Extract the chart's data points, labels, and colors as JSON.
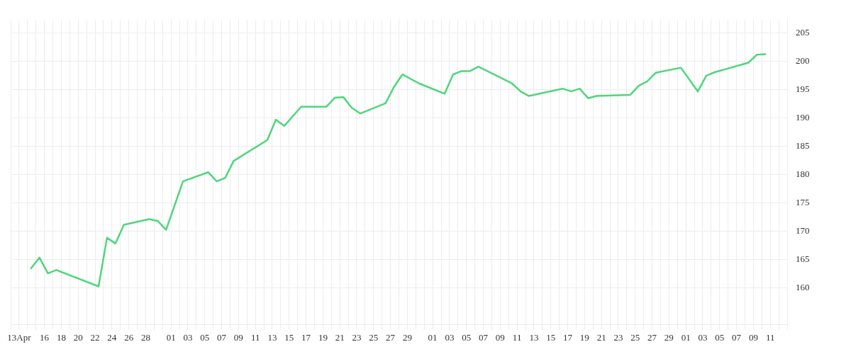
{
  "chart_data": {
    "type": "line",
    "color": "#4fd67c",
    "marker": "none",
    "line_style": "solid",
    "grid": true,
    "legend": false,
    "x": [
      "--04-14T10:00",
      "--04-15T10:00",
      "--04-16T10:00",
      "--04-17T10:00",
      "--04-22T10:00",
      "--04-23T10:00",
      "--04-24T10:00",
      "--04-25T10:00",
      "--04-28T10:00",
      "--04-29T10:00",
      "--04-30T10:00",
      "--05-02T10:00",
      "--05-05T10:00",
      "--05-06T10:00",
      "--05-07T10:00",
      "--05-08T10:00",
      "--05-12T10:00",
      "--05-13T10:00",
      "--05-14T10:00",
      "--05-16T10:00",
      "--05-19T10:00",
      "--05-20T10:00",
      "--05-21T10:00",
      "--05-22T10:00",
      "--05-23T10:00",
      "--05-26T10:00",
      "--05-27T10:00",
      "--05-28T10:00",
      "--05-30T10:00",
      "--06-02T10:00",
      "--06-03T10:00",
      "--06-04T10:00",
      "--06-05T10:00",
      "--06-06T10:00",
      "--06-10T10:00",
      "--06-11T10:00",
      "--06-12T10:00",
      "--06-16T10:00",
      "--06-17T10:00",
      "--06-18T10:00",
      "--06-19T10:00",
      "--06-20T10:00",
      "--06-24T10:00",
      "--06-25T10:00",
      "--06-26T10:00",
      "--06-27T10:00",
      "--06-30T10:00",
      "--07-02T10:00",
      "--07-03T10:00",
      "--07-04T10:00",
      "--07-08T10:00",
      "--07-09T10:00",
      "--07-10T10:00"
    ],
    "values": [
      163.4,
      165.3,
      162.5,
      163.1,
      160.2,
      168.8,
      167.8,
      171.1,
      172.1,
      171.8,
      170.2,
      178.8,
      180.4,
      178.8,
      179.4,
      182.4,
      186.1,
      189.7,
      188.6,
      192.0,
      192.0,
      193.6,
      193.7,
      191.8,
      190.8,
      192.6,
      195.5,
      197.7,
      196.1,
      194.3,
      197.7,
      198.3,
      198.3,
      199.1,
      196.1,
      194.7,
      193.9,
      195.2,
      194.7,
      195.2,
      193.5,
      193.9,
      194.1,
      195.7,
      196.5,
      198.0,
      198.9,
      194.7,
      197.5,
      198.1,
      199.8,
      201.2,
      201.3
    ],
    "ylim": [
      153.5,
      207.4
    ],
    "yticks": [
      160,
      165,
      170,
      175,
      180,
      185,
      190,
      195,
      200,
      205
    ],
    "xlim": [
      "--04-12",
      "--07-13"
    ],
    "xticks": [
      {
        "value": "--04-12",
        "label": null
      },
      {
        "value": "--04-13",
        "label": "13Apr"
      },
      {
        "value": "--04-14",
        "label": null
      },
      {
        "value": "--04-15",
        "label": null
      },
      {
        "value": "--04-16",
        "label": "16"
      },
      {
        "value": "--04-17",
        "label": null
      },
      {
        "value": "--04-18",
        "label": "18"
      },
      {
        "value": "--04-19",
        "label": null
      },
      {
        "value": "--04-20",
        "label": "20"
      },
      {
        "value": "--04-21",
        "label": null
      },
      {
        "value": "--04-22",
        "label": "22"
      },
      {
        "value": "--04-23",
        "label": null
      },
      {
        "value": "--04-24",
        "label": "24"
      },
      {
        "value": "--04-25",
        "label": null
      },
      {
        "value": "--04-26",
        "label": "26"
      },
      {
        "value": "--04-27",
        "label": null
      },
      {
        "value": "--04-28",
        "label": "28"
      },
      {
        "value": "--04-29",
        "label": null
      },
      {
        "value": "--04-30",
        "label": null
      },
      {
        "value": "--05-01",
        "label": "01"
      },
      {
        "value": "--05-02",
        "label": null
      },
      {
        "value": "--05-03",
        "label": "03"
      },
      {
        "value": "--05-04",
        "label": null
      },
      {
        "value": "--05-05",
        "label": "05"
      },
      {
        "value": "--05-06",
        "label": null
      },
      {
        "value": "--05-07",
        "label": "07"
      },
      {
        "value": "--05-08",
        "label": null
      },
      {
        "value": "--05-09",
        "label": "09"
      },
      {
        "value": "--05-10",
        "label": null
      },
      {
        "value": "--05-11",
        "label": "11"
      },
      {
        "value": "--05-12",
        "label": null
      },
      {
        "value": "--05-13",
        "label": "13"
      },
      {
        "value": "--05-14",
        "label": null
      },
      {
        "value": "--05-15",
        "label": "15"
      },
      {
        "value": "--05-16",
        "label": null
      },
      {
        "value": "--05-17",
        "label": "17"
      },
      {
        "value": "--05-18",
        "label": null
      },
      {
        "value": "--05-19",
        "label": "19"
      },
      {
        "value": "--05-20",
        "label": null
      },
      {
        "value": "--05-21",
        "label": "21"
      },
      {
        "value": "--05-22",
        "label": null
      },
      {
        "value": "--05-23",
        "label": "23"
      },
      {
        "value": "--05-24",
        "label": null
      },
      {
        "value": "--05-25",
        "label": "25"
      },
      {
        "value": "--05-26",
        "label": null
      },
      {
        "value": "--05-27",
        "label": "27"
      },
      {
        "value": "--05-28",
        "label": null
      },
      {
        "value": "--05-29",
        "label": "29"
      },
      {
        "value": "--05-30",
        "label": null
      },
      {
        "value": "--05-31",
        "label": null
      },
      {
        "value": "--06-01",
        "label": "01"
      },
      {
        "value": "--06-02",
        "label": null
      },
      {
        "value": "--06-03",
        "label": "03"
      },
      {
        "value": "--06-04",
        "label": null
      },
      {
        "value": "--06-05",
        "label": "05"
      },
      {
        "value": "--06-06",
        "label": null
      },
      {
        "value": "--06-07",
        "label": "07"
      },
      {
        "value": "--06-08",
        "label": null
      },
      {
        "value": "--06-09",
        "label": "09"
      },
      {
        "value": "--06-10",
        "label": null
      },
      {
        "value": "--06-11",
        "label": "11"
      },
      {
        "value": "--06-12",
        "label": null
      },
      {
        "value": "--06-13",
        "label": "13"
      },
      {
        "value": "--06-14",
        "label": null
      },
      {
        "value": "--06-15",
        "label": "15"
      },
      {
        "value": "--06-16",
        "label": null
      },
      {
        "value": "--06-17",
        "label": "17"
      },
      {
        "value": "--06-18",
        "label": null
      },
      {
        "value": "--06-19",
        "label": "19"
      },
      {
        "value": "--06-20",
        "label": null
      },
      {
        "value": "--06-21",
        "label": "21"
      },
      {
        "value": "--06-22",
        "label": null
      },
      {
        "value": "--06-23",
        "label": "23"
      },
      {
        "value": "--06-24",
        "label": null
      },
      {
        "value": "--06-25",
        "label": "25"
      },
      {
        "value": "--06-26",
        "label": null
      },
      {
        "value": "--06-27",
        "label": "27"
      },
      {
        "value": "--06-28",
        "label": null
      },
      {
        "value": "--06-29",
        "label": "29"
      },
      {
        "value": "--06-30",
        "label": null
      },
      {
        "value": "--07-01",
        "label": "01"
      },
      {
        "value": "--07-02",
        "label": null
      },
      {
        "value": "--07-03",
        "label": "03"
      },
      {
        "value": "--07-04",
        "label": null
      },
      {
        "value": "--07-05",
        "label": "05"
      },
      {
        "value": "--07-06",
        "label": null
      },
      {
        "value": "--07-07",
        "label": "07"
      },
      {
        "value": "--07-08",
        "label": null
      },
      {
        "value": "--07-09",
        "label": "09"
      },
      {
        "value": "--07-10",
        "label": null
      },
      {
        "value": "--07-11",
        "label": "11"
      },
      {
        "value": "--07-12",
        "label": null
      },
      {
        "value": "--07-13",
        "label": null
      }
    ]
  }
}
